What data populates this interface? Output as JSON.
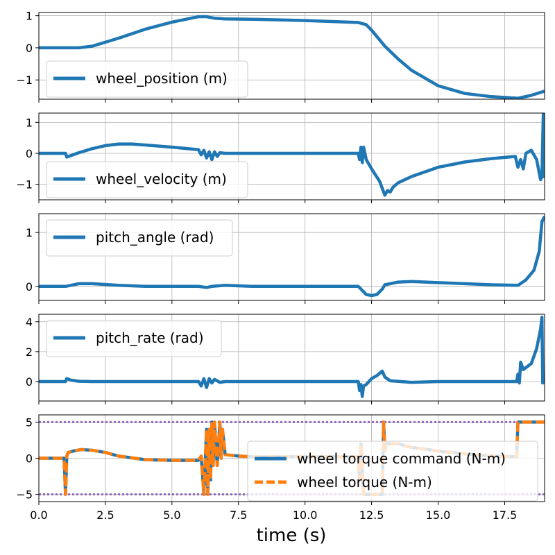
{
  "colors": {
    "blue": "#1f77b4",
    "orange": "#ff7f0e",
    "purple": "#9467bd"
  },
  "chart_data": [
    {
      "type": "line",
      "grid": true,
      "legend": "lower-left",
      "xlim": [
        0,
        19
      ],
      "ylim": [
        -1.6,
        1.1
      ],
      "yticks": [
        -1,
        0,
        1
      ],
      "ytick_labels": [
        "−1",
        "0",
        "1"
      ],
      "series": [
        {
          "name": "wheel_position (m)",
          "color": "#1f77b4",
          "style": "solid",
          "x": [
            0,
            1,
            1.5,
            2,
            3,
            4,
            5,
            6,
            6.3,
            6.6,
            7,
            8,
            9,
            10,
            11,
            12,
            12.3,
            12.5,
            13,
            13.5,
            14,
            15,
            16,
            17,
            18,
            18.5,
            19
          ],
          "y": [
            0,
            0,
            0,
            0.05,
            0.3,
            0.58,
            0.8,
            0.97,
            0.97,
            0.92,
            0.9,
            0.89,
            0.87,
            0.85,
            0.82,
            0.79,
            0.72,
            0.55,
            0.05,
            -0.35,
            -0.7,
            -1.18,
            -1.42,
            -1.52,
            -1.57,
            -1.48,
            -1.35
          ]
        }
      ]
    },
    {
      "type": "line",
      "grid": true,
      "legend": "lower-left",
      "xlim": [
        0,
        19
      ],
      "ylim": [
        -1.5,
        1.3
      ],
      "yticks": [
        -1,
        0,
        1
      ],
      "ytick_labels": [
        "−1",
        "0",
        "1"
      ],
      "series": [
        {
          "name": "wheel_velocity (m)",
          "color": "#1f77b4",
          "style": "solid",
          "x": [
            0,
            1,
            1.05,
            1.5,
            2,
            2.5,
            3,
            3.5,
            4,
            5,
            6,
            6.1,
            6.2,
            6.3,
            6.4,
            6.5,
            6.6,
            6.7,
            6.8,
            7,
            8,
            9,
            10,
            11,
            12,
            12.05,
            12.1,
            12.15,
            12.2,
            12.3,
            12.5,
            12.8,
            13,
            13.1,
            13.2,
            13.3,
            13.5,
            14,
            15,
            16,
            17,
            17.9,
            18,
            18.1,
            18.2,
            18.3,
            18.5,
            18.7,
            18.85,
            18.9,
            18.95,
            19
          ],
          "y": [
            0,
            0,
            -0.12,
            0.02,
            0.15,
            0.25,
            0.3,
            0.3,
            0.27,
            0.2,
            0.12,
            -0.05,
            0.1,
            -0.15,
            0.05,
            -0.2,
            0.05,
            -0.1,
            0.02,
            0,
            0,
            0,
            0,
            0,
            0,
            -0.2,
            0.2,
            -0.3,
            0.2,
            -0.2,
            -0.5,
            -0.9,
            -1.35,
            -1.2,
            -1.25,
            -1.1,
            -0.95,
            -0.75,
            -0.45,
            -0.28,
            -0.17,
            -0.1,
            -0.45,
            -0.2,
            -0.5,
            0,
            0.1,
            -0.2,
            -0.85,
            -0.75,
            1.25,
            -0.8
          ]
        }
      ]
    },
    {
      "type": "line",
      "grid": true,
      "legend": "upper-left",
      "xlim": [
        0,
        19
      ],
      "ylim": [
        -0.26,
        1.35
      ],
      "yticks": [
        0,
        1
      ],
      "ytick_labels": [
        "0",
        "1"
      ],
      "series": [
        {
          "name": "pitch_angle (rad)",
          "color": "#1f77b4",
          "style": "solid",
          "x": [
            0,
            1,
            1.2,
            1.5,
            2,
            3,
            4,
            5,
            6,
            6.3,
            6.5,
            7,
            7.5,
            8,
            9,
            10,
            11,
            12,
            12.1,
            12.3,
            12.5,
            12.7,
            12.9,
            13,
            13.5,
            14,
            15,
            16,
            17,
            18,
            18.3,
            18.6,
            18.8,
            18.9,
            19
          ],
          "y": [
            0,
            0,
            0.02,
            0.05,
            0.05,
            0.02,
            0,
            0,
            0,
            -0.02,
            0,
            0.02,
            0.01,
            0,
            0,
            0,
            0,
            0,
            -0.05,
            -0.15,
            -0.17,
            -0.15,
            -0.05,
            0.03,
            0.08,
            0.09,
            0.07,
            0.05,
            0.03,
            0.02,
            0.12,
            0.3,
            0.65,
            1.2,
            1.3
          ]
        }
      ]
    },
    {
      "type": "line",
      "grid": true,
      "legend": "upper-left",
      "xlim": [
        0,
        19
      ],
      "ylim": [
        -1.3,
        4.5
      ],
      "yticks": [
        0,
        2,
        4
      ],
      "ytick_labels": [
        "0",
        "2",
        "4"
      ],
      "series": [
        {
          "name": "pitch_rate (rad)",
          "color": "#1f77b4",
          "style": "solid",
          "x": [
            0,
            1,
            1.05,
            1.2,
            1.5,
            2,
            3,
            4,
            5,
            6,
            6.1,
            6.2,
            6.3,
            6.4,
            6.5,
            6.6,
            6.8,
            7,
            8,
            9,
            10,
            11,
            12,
            12.05,
            12.1,
            12.15,
            12.2,
            12.3,
            12.5,
            12.7,
            12.9,
            13,
            13.2,
            14,
            15,
            16,
            17,
            17.95,
            18,
            18.05,
            18.1,
            18.2,
            18.5,
            18.7,
            18.85,
            18.9,
            18.93,
            19
          ],
          "y": [
            0,
            0,
            0.2,
            0.1,
            0.02,
            0,
            0,
            0,
            0,
            0,
            -0.3,
            0.2,
            -0.4,
            0.2,
            -0.1,
            0.15,
            -0.05,
            0,
            0,
            0,
            0,
            0,
            0,
            -0.6,
            -0.2,
            -1.0,
            -0.3,
            -0.2,
            0.2,
            0.4,
            0.7,
            0.3,
            0.05,
            -0.05,
            0,
            0,
            0,
            0,
            0.5,
            -0.1,
            1.3,
            0.8,
            1.2,
            2.2,
            3.5,
            4.3,
            -0.1,
            0
          ]
        }
      ]
    },
    {
      "type": "line",
      "grid": true,
      "legend": "center-right",
      "xlim": [
        0,
        19
      ],
      "ylim": [
        -6.0,
        6.0
      ],
      "yticks": [
        -5,
        0,
        5
      ],
      "ytick_labels": [
        "−5",
        "0",
        "5"
      ],
      "xticks": [
        0,
        2.5,
        5,
        7.5,
        10,
        12.5,
        15,
        17.5
      ],
      "xtick_labels": [
        "0.0",
        "2.5",
        "5.0",
        "7.5",
        "10.0",
        "12.5",
        "15.0",
        "17.5"
      ],
      "xlabel": "time (s)",
      "hlines": [
        {
          "y": 5,
          "color": "#9467bd",
          "style": "dotted"
        },
        {
          "y": -5,
          "color": "#9467bd",
          "style": "dotted"
        }
      ],
      "series": [
        {
          "name": "wheel torque command (N-m)",
          "color": "#1f77b4",
          "style": "solid",
          "x": [
            0,
            0.95,
            1.0,
            1.05,
            1.1,
            1.3,
            1.6,
            2,
            2.5,
            3,
            4,
            5,
            6,
            6.1,
            6.2,
            6.3,
            6.35,
            6.4,
            6.45,
            6.5,
            6.55,
            6.6,
            6.7,
            6.8,
            6.85,
            6.9,
            7,
            7.5,
            8,
            9,
            10,
            11,
            12,
            12.05,
            12.1,
            12.2,
            12.3,
            12.5,
            12.9,
            12.95,
            13.0,
            13.05,
            13.5,
            14,
            15,
            16,
            17,
            17.95,
            18.0,
            19
          ],
          "y": [
            0,
            0,
            -5,
            0.3,
            0.8,
            1.0,
            1.2,
            1.1,
            0.8,
            0.3,
            -0.2,
            -0.3,
            -0.3,
            0.3,
            -5,
            4,
            -5,
            4,
            -3,
            5,
            -1,
            5,
            -1,
            5,
            0,
            4,
            0.5,
            0.3,
            0.2,
            0.2,
            0.2,
            0.2,
            0.2,
            -3,
            2,
            -5,
            -5,
            -5,
            -5,
            5,
            1,
            2,
            2,
            1.5,
            1.0,
            0.6,
            0.3,
            0.2,
            5,
            5
          ]
        },
        {
          "name": "wheel torque (N-m)",
          "color": "#ff7f0e",
          "style": "dashed",
          "x": [
            0,
            0.95,
            1.0,
            1.05,
            1.1,
            1.3,
            1.6,
            2,
            2.5,
            3,
            4,
            5,
            6,
            6.1,
            6.2,
            6.3,
            6.35,
            6.4,
            6.45,
            6.5,
            6.55,
            6.6,
            6.7,
            6.8,
            6.85,
            6.9,
            7,
            7.5,
            8,
            9,
            10,
            11,
            12,
            12.05,
            12.1,
            12.2,
            12.3,
            12.5,
            12.9,
            12.95,
            13.0,
            13.05,
            13.5,
            14,
            15,
            16,
            17,
            17.95,
            18.0,
            19
          ],
          "y": [
            0,
            0,
            -5,
            0.3,
            0.8,
            1.0,
            1.2,
            1.1,
            0.8,
            0.3,
            -0.2,
            -0.3,
            -0.3,
            0.3,
            -5,
            4,
            -5,
            4,
            -3,
            5,
            -1,
            5,
            -1,
            5,
            0,
            4,
            0.5,
            0.3,
            0.2,
            0.2,
            0.2,
            0.2,
            0.2,
            -3,
            2,
            -5,
            -5,
            -5,
            -5,
            5,
            1,
            2,
            2,
            1.5,
            1.0,
            0.6,
            0.3,
            0.2,
            5,
            5
          ]
        }
      ]
    }
  ]
}
